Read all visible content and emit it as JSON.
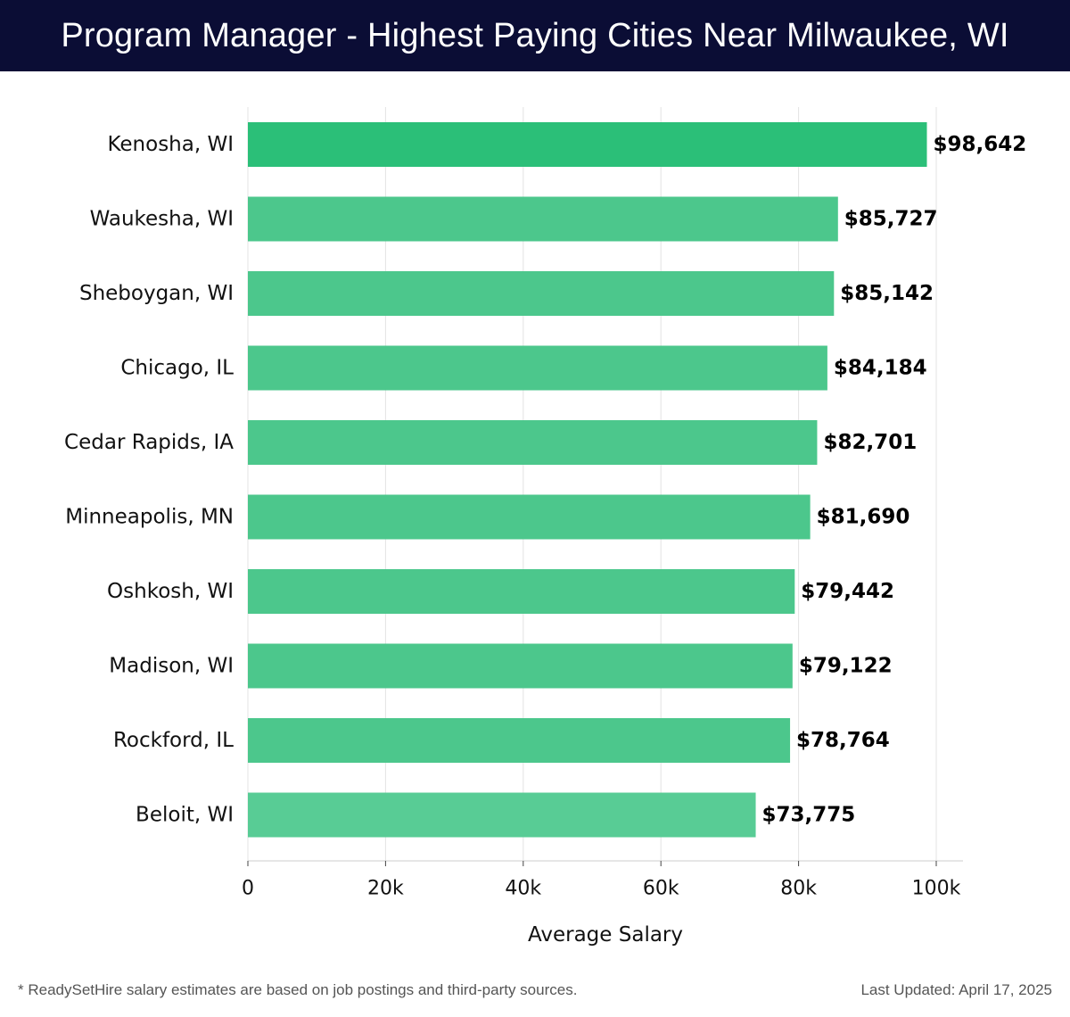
{
  "header": {
    "title": "Program Manager - Highest Paying Cities Near Milwaukee, WI"
  },
  "chart_data": {
    "type": "bar",
    "orientation": "horizontal",
    "categories": [
      "Kenosha, WI",
      "Waukesha, WI",
      "Sheboygan, WI",
      "Chicago, IL",
      "Cedar Rapids, IA",
      "Minneapolis, MN",
      "Oshkosh, WI",
      "Madison, WI",
      "Rockford, IL",
      "Beloit, WI"
    ],
    "values": [
      98642,
      85727,
      85142,
      84184,
      82701,
      81690,
      79442,
      79122,
      78764,
      73775
    ],
    "value_labels": [
      "$98,642",
      "$85,727",
      "$85,142",
      "$84,184",
      "$82,701",
      "$81,690",
      "$79,442",
      "$79,122",
      "$78,764",
      "$73,775"
    ],
    "xticks": [
      0,
      20000,
      40000,
      60000,
      80000,
      100000
    ],
    "xtick_labels": [
      "0",
      "20k",
      "40k",
      "60k",
      "80k",
      "100k"
    ],
    "xlabel": "Average Salary",
    "xlim": [
      0,
      104000
    ],
    "grid": true,
    "colors": {
      "top_bar": "#2bbf78",
      "bar": "#4cc78c",
      "last_bar": "#58cc95"
    }
  },
  "footer": {
    "note": "* ReadySetHire salary estimates are based on job postings and third-party sources.",
    "updated": "Last Updated: April 17, 2025"
  }
}
